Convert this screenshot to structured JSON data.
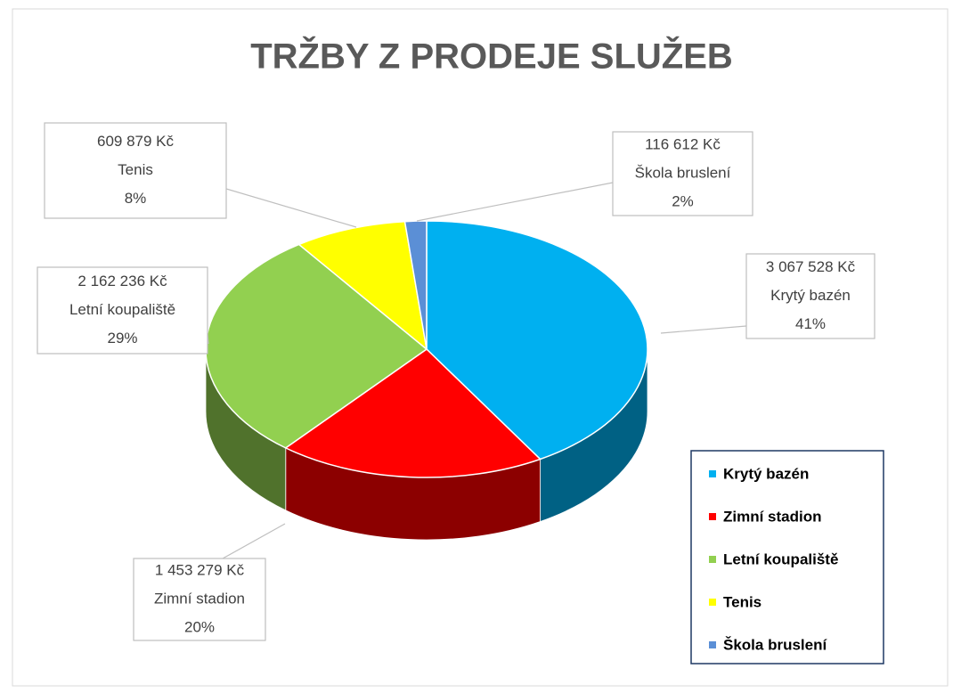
{
  "chart_data": {
    "type": "pie",
    "title": "TRŽBY Z PRODEJE SLUŽEB",
    "categories": [
      "Krytý bazén",
      "Zimní stadion",
      "Letní koupaliště",
      "Tenis",
      "Škola bruslení"
    ],
    "values": [
      3067528,
      1453279,
      2162236,
      609879,
      116612
    ],
    "value_labels": [
      "3 067 528 Kč",
      "1 453 279 Kč",
      "2 162 236 Kč",
      "609 879 Kč",
      "116 612 Kč"
    ],
    "percent_labels": [
      "41%",
      "20%",
      "29%",
      "8%",
      "2%"
    ],
    "colors": [
      "#00b0f0",
      "#ff0000",
      "#92d050",
      "#ffff00",
      "#5b8fd6"
    ],
    "legend": "right"
  }
}
